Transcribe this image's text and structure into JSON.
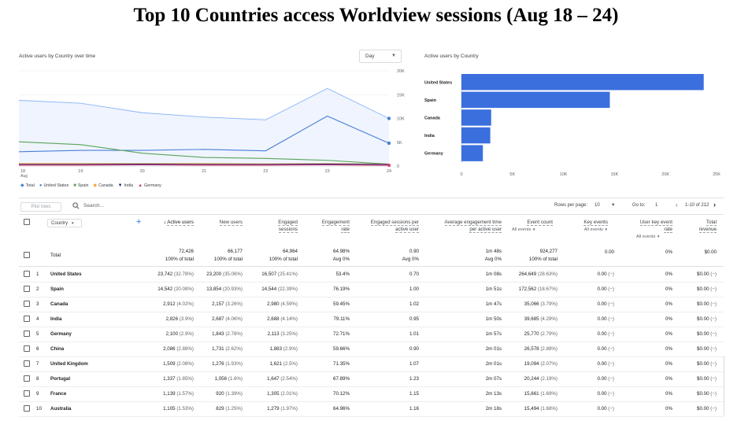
{
  "slide_title": "Top 10 Countries access Worldview sessions (Aug 18 – 24)",
  "line_card": {
    "title": "Active users by Country over time",
    "granularity": "Day",
    "y_ticks": [
      "20K",
      "15K",
      "10K",
      "5K",
      "0"
    ],
    "x_ticks": [
      "18",
      "19",
      "20",
      "21",
      "22",
      "23",
      "24"
    ],
    "x_month": "Aug",
    "legend": [
      "Total",
      "United States",
      "Spain",
      "Canada",
      "India",
      "Germany"
    ]
  },
  "bar_card": {
    "title": "Active users by Country",
    "x_ticks": [
      "0",
      "5K",
      "10K",
      "15K",
      "20K",
      "25K"
    ]
  },
  "colors": {
    "total": "#8ab4f8",
    "total_fill": "#e8f0fe",
    "united_states": "#4a7fd6",
    "spain": "#5aa35a",
    "canada": "#f2a93b",
    "india": "#1a237e",
    "germany": "#d6336c",
    "bar": "#3b6fde"
  },
  "chart_data": [
    {
      "type": "area",
      "title": "Active users by Country over time",
      "x": [
        "Aug 18",
        "Aug 19",
        "Aug 20",
        "Aug 21",
        "Aug 22",
        "Aug 23",
        "Aug 24"
      ],
      "ylim": [
        0,
        20000
      ],
      "series": [
        {
          "name": "Total",
          "values": [
            13800,
            13200,
            11200,
            10300,
            9700,
            16300,
            10000
          ]
        },
        {
          "name": "United States",
          "values": [
            3000,
            3300,
            3300,
            3500,
            3200,
            10500,
            4800
          ]
        },
        {
          "name": "Spain",
          "values": [
            5100,
            4500,
            2700,
            1800,
            1600,
            1200,
            400
          ]
        },
        {
          "name": "Canada",
          "values": [
            500,
            500,
            500,
            500,
            450,
            500,
            400
          ]
        },
        {
          "name": "India",
          "values": [
            350,
            350,
            400,
            350,
            350,
            400,
            350
          ]
        },
        {
          "name": "Germany",
          "values": [
            200,
            200,
            250,
            200,
            200,
            250,
            150
          ]
        }
      ],
      "grid": true,
      "legend": "bottom-left"
    },
    {
      "type": "bar",
      "title": "Active users by Country",
      "categories": [
        "United States",
        "Spain",
        "Canada",
        "India",
        "Germany"
      ],
      "values": [
        23742,
        14542,
        2912,
        2826,
        2100
      ],
      "xlim": [
        0,
        25000
      ],
      "orientation": "horizontal"
    }
  ],
  "toolbar": {
    "plot_rows": "Plot rows",
    "search_placeholder": "Search...",
    "rows_per_page_label": "Rows per page:",
    "rows_per_page": "10",
    "goto_label": "Go to:",
    "goto_value": "1",
    "range": "1-10 of 212"
  },
  "table": {
    "dimension": "Country",
    "headers": {
      "active_users": "Active users",
      "new_users": "New users",
      "engaged_sessions_1": "Engaged",
      "engaged_sessions_2": "sessions",
      "engagement_rate_1": "Engagement",
      "engagement_rate_2": "rate",
      "esp_1": "Engaged sessions per",
      "esp_2": "active user",
      "aet_1": "Average engagement time",
      "aet_2": "per active user",
      "event_count": "Event count",
      "event_sub": "All events",
      "key_events": "Key events",
      "key_sub": "All events",
      "ukr_1": "User key event",
      "ukr_2": "rate",
      "ukr_sub": "All events",
      "revenue_1": "Total",
      "revenue_2": "revenue"
    },
    "total": {
      "label": "Total",
      "active_users": "72,426",
      "active_users_sub": "100% of total",
      "new_users": "66,177",
      "new_users_sub": "100% of total",
      "engaged_sessions": "64,964",
      "engaged_sessions_sub": "100% of total",
      "engagement_rate": "64.98%",
      "engagement_rate_sub": "Avg 0%",
      "esp": "0.90",
      "esp_sub": "Avg 0%",
      "aet": "1m 48s",
      "aet_sub": "Avg 0%",
      "event_count": "924,277",
      "event_count_sub": "100% of total",
      "key_events": "0.00",
      "ukr": "0%",
      "revenue": "$0.00"
    },
    "rows": [
      {
        "n": "1",
        "country": "United States",
        "au": "23,742",
        "au_p": "(32.78%)",
        "nu": "23,200",
        "nu_p": "(35.06%)",
        "es": "16,507",
        "es_p": "(25.41%)",
        "er": "53.4%",
        "esp": "0.70",
        "aet": "1m 08s",
        "ec": "264,649",
        "ec_p": "(28.63%)",
        "ke": "0.00",
        "ke_p": "(−)",
        "ukr": "0%",
        "rev": "$0.00",
        "rev_p": "(−)"
      },
      {
        "n": "2",
        "country": "Spain",
        "au": "14,542",
        "au_p": "(20.08%)",
        "nu": "13,854",
        "nu_p": "(20.93%)",
        "es": "14,544",
        "es_p": "(22.39%)",
        "er": "76.19%",
        "esp": "1.00",
        "aet": "1m 51s",
        "ec": "172,562",
        "ec_p": "(18.67%)",
        "ke": "0.00",
        "ke_p": "(−)",
        "ukr": "0%",
        "rev": "$0.00",
        "rev_p": "(−)"
      },
      {
        "n": "3",
        "country": "Canada",
        "au": "2,912",
        "au_p": "(4.02%)",
        "nu": "2,157",
        "nu_p": "(3.26%)",
        "es": "2,980",
        "es_p": "(4.59%)",
        "er": "59.45%",
        "esp": "1.02",
        "aet": "1m 47s",
        "ec": "35,066",
        "ec_p": "(3.79%)",
        "ke": "0.00",
        "ke_p": "(−)",
        "ukr": "0%",
        "rev": "$0.00",
        "rev_p": "(−)"
      },
      {
        "n": "4",
        "country": "India",
        "au": "2,826",
        "au_p": "(3.9%)",
        "nu": "2,687",
        "nu_p": "(4.06%)",
        "es": "2,688",
        "es_p": "(4.14%)",
        "er": "79.11%",
        "esp": "0.95",
        "aet": "1m 50s",
        "ec": "39,685",
        "ec_p": "(4.29%)",
        "ke": "0.00",
        "ke_p": "(−)",
        "ukr": "0%",
        "rev": "$0.00",
        "rev_p": "(−)"
      },
      {
        "n": "5",
        "country": "Germany",
        "au": "2,100",
        "au_p": "(2.9%)",
        "nu": "1,843",
        "nu_p": "(2.78%)",
        "es": "2,113",
        "es_p": "(3.25%)",
        "er": "72.71%",
        "esp": "1.01",
        "aet": "1m 57s",
        "ec": "25,770",
        "ec_p": "(2.79%)",
        "ke": "0.00",
        "ke_p": "(−)",
        "ukr": "0%",
        "rev": "$0.00",
        "rev_p": "(−)"
      },
      {
        "n": "6",
        "country": "China",
        "au": "2,086",
        "au_p": "(2.88%)",
        "nu": "1,731",
        "nu_p": "(2.62%)",
        "es": "1,883",
        "es_p": "(2.9%)",
        "er": "59.66%",
        "esp": "0.90",
        "aet": "2m 01s",
        "ec": "26,578",
        "ec_p": "(2.88%)",
        "ke": "0.00",
        "ke_p": "(−)",
        "ukr": "0%",
        "rev": "$0.00",
        "rev_p": "(−)"
      },
      {
        "n": "7",
        "country": "United Kingdom",
        "au": "1,509",
        "au_p": "(2.08%)",
        "nu": "1,276",
        "nu_p": "(1.93%)",
        "es": "1,621",
        "es_p": "(2.5%)",
        "er": "71.35%",
        "esp": "1.07",
        "aet": "2m 01s",
        "ec": "19,094",
        "ec_p": "(2.07%)",
        "ke": "0.00",
        "ke_p": "(−)",
        "ukr": "0%",
        "rev": "$0.00",
        "rev_p": "(−)"
      },
      {
        "n": "8",
        "country": "Portugal",
        "au": "1,337",
        "au_p": "(1.85%)",
        "nu": "1,056",
        "nu_p": "(1.6%)",
        "es": "1,647",
        "es_p": "(2.54%)",
        "er": "67.89%",
        "esp": "1.23",
        "aet": "2m 07s",
        "ec": "20,244",
        "ec_p": "(2.19%)",
        "ke": "0.00",
        "ke_p": "(−)",
        "ukr": "0%",
        "rev": "$0.00",
        "rev_p": "(−)"
      },
      {
        "n": "9",
        "country": "France",
        "au": "1,139",
        "au_p": "(1.57%)",
        "nu": "920",
        "nu_p": "(1.39%)",
        "es": "1,305",
        "es_p": "(2.01%)",
        "er": "70.12%",
        "esp": "1.15",
        "aet": "2m 13s",
        "ec": "15,661",
        "ec_p": "(1.69%)",
        "ke": "0.00",
        "ke_p": "(−)",
        "ukr": "0%",
        "rev": "$0.00",
        "rev_p": "(−)"
      },
      {
        "n": "10",
        "country": "Australia",
        "au": "1,105",
        "au_p": "(1.53%)",
        "nu": "829",
        "nu_p": "(1.25%)",
        "es": "1,279",
        "es_p": "(1.97%)",
        "er": "64.96%",
        "esp": "1.16",
        "aet": "2m 18s",
        "ec": "15,494",
        "ec_p": "(1.68%)",
        "ke": "0.00",
        "ke_p": "(−)",
        "ukr": "0%",
        "rev": "$0.00",
        "rev_p": "(−)"
      }
    ]
  }
}
